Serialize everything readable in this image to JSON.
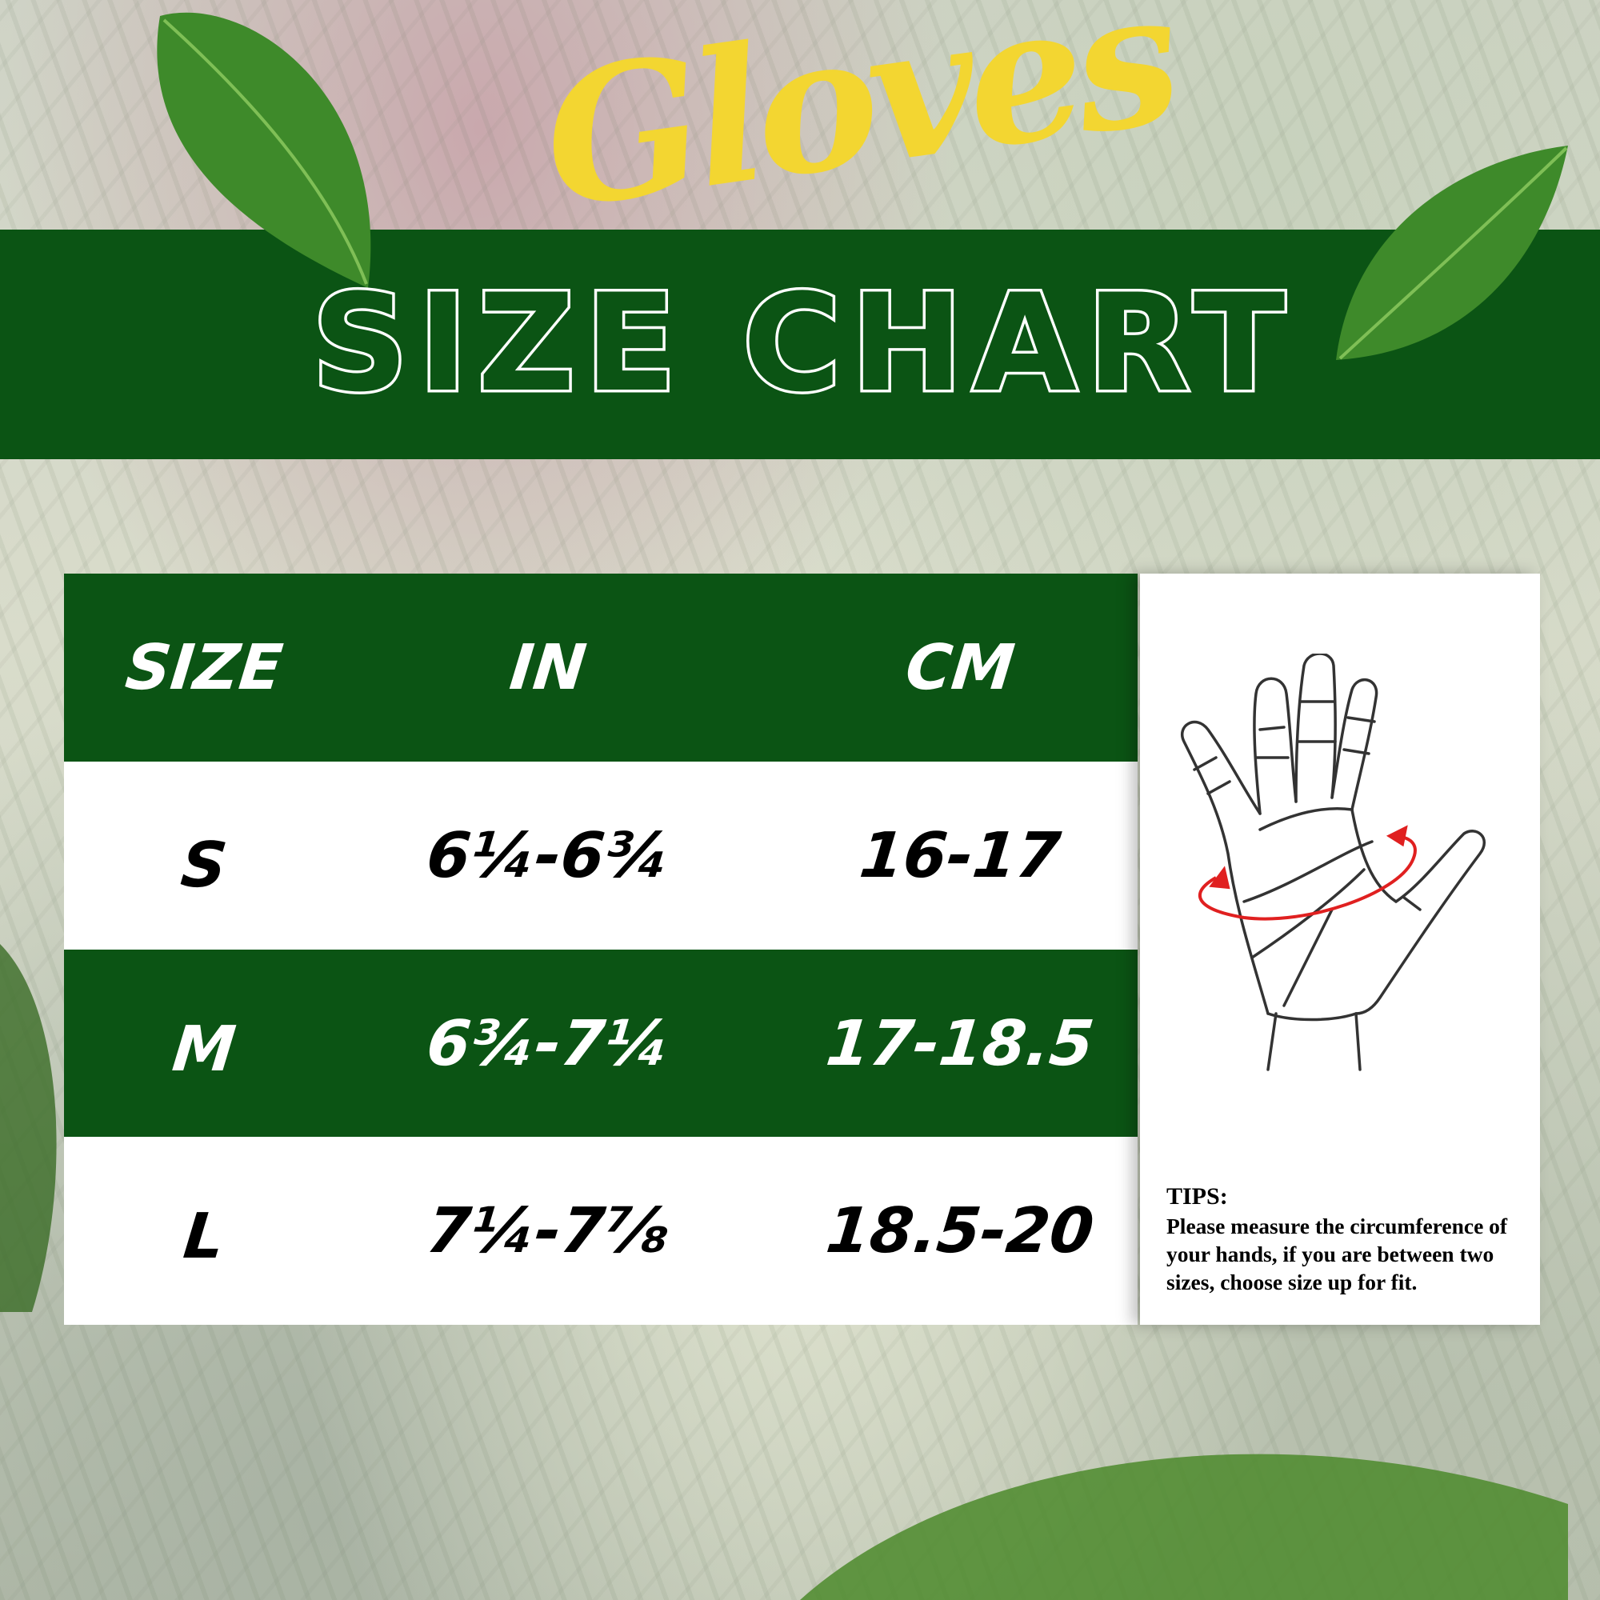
{
  "title": {
    "script": "Gloves",
    "main": "SIZE CHART"
  },
  "colors": {
    "banner_green": "#0b5414",
    "script_yellow": "#f3d631",
    "arrow_red": "#e02020"
  },
  "table": {
    "headers": [
      "SIZE",
      "IN",
      "CM"
    ],
    "rows": [
      {
        "size": "S",
        "in": "6¼-6¾",
        "cm": "16-17"
      },
      {
        "size": "M",
        "in": "6¾-7¼",
        "cm": "17-18.5"
      },
      {
        "size": "L",
        "in": "7¼-7⅞",
        "cm": "18.5-20"
      }
    ]
  },
  "panel": {
    "illustration": "hand-measurement-icon",
    "tips_title": "TIPS:",
    "tips_body": "Please measure the circumference of your hands, if you are between two sizes, choose size up for fit."
  }
}
